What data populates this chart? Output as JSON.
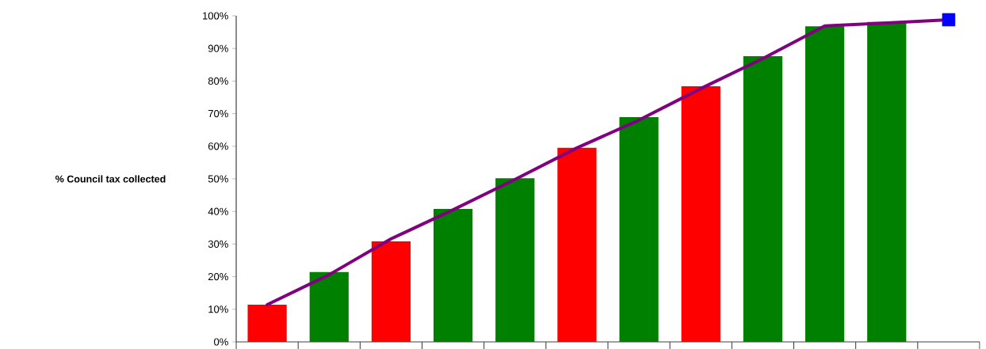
{
  "chart_data": {
    "type": "bar",
    "ylabel": "% Council tax collected",
    "categories": [
      null,
      null,
      null,
      null,
      null,
      null,
      null,
      null,
      null,
      null,
      null,
      null
    ],
    "series": [
      {
        "colors": [
          "#ff0000",
          "#008000",
          "#ff0000",
          "#008000",
          "#008000",
          "#ff0000",
          "#008000",
          "#ff0000",
          "#008000",
          "#008000",
          "#008000",
          "#008000"
        ],
        "values": [
          11.4,
          21.4,
          30.8,
          40.8,
          50.2,
          59.5,
          68.9,
          78.4,
          87.6,
          96.8,
          98.1,
          null
        ]
      },
      {
        "type": "line",
        "color": "#800080",
        "line_style": "solid",
        "values": [
          11.4,
          20.6,
          31.6,
          40.5,
          49.8,
          59.5,
          68.0,
          77.7,
          86.9,
          96.9,
          97.8,
          98.8
        ]
      },
      {
        "type": "scatter",
        "color": "#0000ff",
        "marker": "square",
        "values": [
          null,
          null,
          null,
          null,
          null,
          null,
          null,
          null,
          null,
          null,
          null,
          98.8
        ]
      }
    ],
    "ylim": [
      0,
      100
    ],
    "yticks": [
      {
        "value": 0,
        "label": "0%"
      },
      {
        "value": 10,
        "label": "10%"
      },
      {
        "value": 20,
        "label": "20%"
      },
      {
        "value": 30,
        "label": "30%"
      },
      {
        "value": 40,
        "label": "40%"
      },
      {
        "value": 50,
        "label": "50%"
      },
      {
        "value": 60,
        "label": "60%"
      },
      {
        "value": 70,
        "label": "70%"
      },
      {
        "value": 80,
        "label": "80%"
      },
      {
        "value": 90,
        "label": "90%"
      },
      {
        "value": 100,
        "label": "100%"
      }
    ],
    "grid": false
  }
}
